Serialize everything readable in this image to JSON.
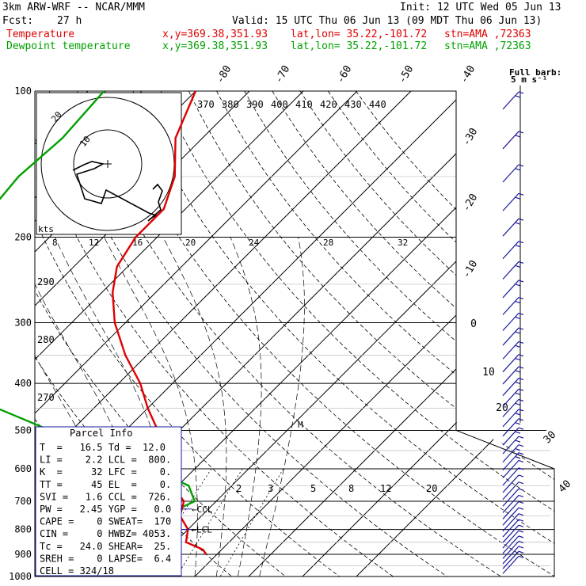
{
  "header": {
    "model": "3km ARW-WRF -- NCAR/MMM",
    "init": "Init: 12 UTC Wed 05 Jun 13",
    "fcst_label": "Fcst:",
    "fcst_value": "27 h",
    "valid": "Valid: 15 UTC Thu 06 Jun 13 (09 MDT Thu 06 Jun 13)",
    "temp_label": "Temperature",
    "dew_label": "Dewpoint temperature",
    "xy": "x,y=369.38,351.93",
    "latlon": "lat,lon= 35.22,-101.72",
    "stn": "stn=AMA ,72363"
  },
  "colors": {
    "temperature": "#e00000",
    "dewpoint": "#00a000",
    "barbs": "#1a1aa0",
    "grid": "#000000"
  },
  "chart_data": {
    "type": "skew-t",
    "pressure_levels": [
      "100",
      "200",
      "300",
      "400",
      "500",
      "600",
      "700",
      "800",
      "900",
      "1000"
    ],
    "ylim": [
      1000,
      100
    ],
    "isotherm_labels": [
      "-80",
      "-70",
      "-60",
      "-50",
      "-40",
      "-30",
      "-20",
      "-10",
      "0",
      "10",
      "20",
      "30",
      "40"
    ],
    "theta_top_labels": [
      "370",
      "380",
      "390",
      "400",
      "410",
      "420",
      "430",
      "440"
    ],
    "theta_left_labels": [
      "290",
      "280",
      "270"
    ],
    "mixing_ratio_labels": [
      "2",
      "3",
      "5",
      "8",
      "12",
      "20"
    ],
    "temperature_profile": [
      [
        100,
        -70
      ],
      [
        125,
        -65
      ],
      [
        150,
        -58
      ],
      [
        175,
        -54
      ],
      [
        200,
        -54
      ],
      [
        230,
        -52
      ],
      [
        260,
        -48
      ],
      [
        300,
        -42
      ],
      [
        350,
        -34
      ],
      [
        400,
        -26
      ],
      [
        450,
        -20
      ],
      [
        500,
        -14
      ],
      [
        550,
        -8
      ],
      [
        600,
        -3
      ],
      [
        650,
        -1
      ],
      [
        700,
        4
      ],
      [
        750,
        6
      ],
      [
        800,
        10
      ],
      [
        850,
        12
      ],
      [
        880,
        16.5
      ],
      [
        900,
        18
      ]
    ],
    "dewpoint_profile": [
      [
        100,
        -87
      ],
      [
        125,
        -86
      ],
      [
        150,
        -87
      ],
      [
        175,
        -86
      ],
      [
        200,
        -80
      ],
      [
        220,
        -76
      ],
      [
        250,
        -72
      ],
      [
        300,
        -72
      ],
      [
        330,
        -75
      ],
      [
        350,
        -72
      ],
      [
        400,
        -60
      ],
      [
        450,
        -48
      ],
      [
        500,
        -34
      ],
      [
        550,
        -20
      ],
      [
        600,
        -8
      ],
      [
        650,
        2
      ],
      [
        700,
        6
      ],
      [
        750,
        3
      ],
      [
        800,
        3
      ],
      [
        850,
        4
      ],
      [
        880,
        12
      ],
      [
        900,
        12
      ]
    ],
    "annotations": [
      "CCL",
      "LCL"
    ],
    "wind_barb_header": "Full barb:",
    "wind_barb_units": "5 m s⁻¹",
    "wind_barb_count": 40
  },
  "hodograph": {
    "units": "kts",
    "speed_labels": [
      "8",
      "12",
      "16",
      "20",
      "24",
      "28",
      "32"
    ],
    "ring_labels": [
      "10",
      "20"
    ]
  },
  "parcel_info": {
    "title": "Parcel Info",
    "rows": [
      "T  =   16.5 Td =  12.0",
      "LI =    2.2 LCL =  800.",
      "K  =     32 LFC =    0.",
      "TT =     45 EL  =    0.",
      "SVI =   1.6 CCL =  726.",
      "PW =   2.45 YGP =   0.0",
      "CAPE =    0 SWEAT=  170",
      "CIN =     0 HWBZ= 4053.",
      "Tc =   24.0 SHEAR=  25.",
      "SREH =    0 LAPSE=  6.4",
      "CELL = 324/18"
    ]
  }
}
